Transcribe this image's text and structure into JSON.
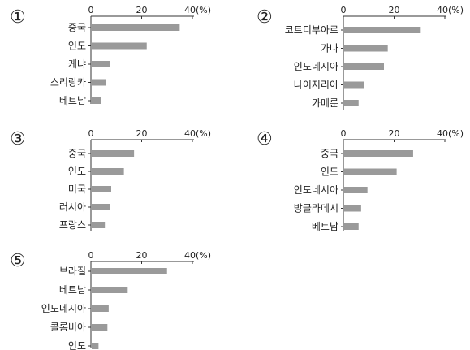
{
  "chart_data": [
    {
      "type": "bar",
      "panel_label": "①",
      "axis_unit": "(%)",
      "xlim": [
        0,
        40
      ],
      "ticks": [
        "0",
        "20",
        "40"
      ],
      "categories": [
        "중국",
        "인도",
        "케냐",
        "스리랑카",
        "베트남"
      ],
      "values": [
        35,
        22,
        7.5,
        6,
        4
      ]
    },
    {
      "type": "bar",
      "panel_label": "②",
      "axis_unit": "(%)",
      "xlim": [
        0,
        40
      ],
      "ticks": [
        "0",
        "20",
        "40"
      ],
      "categories": [
        "코트디부아르",
        "가나",
        "인도네시아",
        "나이지리아",
        "카메룬"
      ],
      "values": [
        30.5,
        17.5,
        16,
        8,
        6
      ]
    },
    {
      "type": "bar",
      "panel_label": "③",
      "axis_unit": "(%)",
      "xlim": [
        0,
        40
      ],
      "ticks": [
        "0",
        "20",
        "40"
      ],
      "categories": [
        "중국",
        "인도",
        "미국",
        "러시아",
        "프랑스"
      ],
      "values": [
        17,
        13,
        8,
        7.5,
        5.5
      ]
    },
    {
      "type": "bar",
      "panel_label": "④",
      "axis_unit": "(%)",
      "xlim": [
        0,
        40
      ],
      "ticks": [
        "0",
        "20",
        "40"
      ],
      "categories": [
        "중국",
        "인도",
        "인도네시아",
        "방글라데시",
        "베트남"
      ],
      "values": [
        27.5,
        21,
        9.5,
        7,
        6
      ]
    },
    {
      "type": "bar",
      "panel_label": "⑤",
      "axis_unit": "(%)",
      "xlim": [
        0,
        40
      ],
      "ticks": [
        "0",
        "20",
        "40"
      ],
      "categories": [
        "브라질",
        "베트남",
        "인도네시아",
        "콜롬비아",
        "인도"
      ],
      "values": [
        30,
        14.5,
        7,
        6.5,
        3
      ]
    }
  ],
  "colors": {
    "bar": "#9a9a9a",
    "axis": "#333333",
    "text": "#222222"
  }
}
